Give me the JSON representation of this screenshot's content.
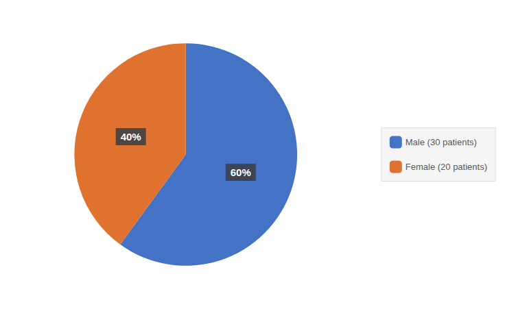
{
  "chart_data": {
    "type": "pie",
    "categories": [
      "Male (30 patients)",
      "Female (20 patients)"
    ],
    "values": [
      60,
      40
    ],
    "value_labels": [
      "60%",
      "40%"
    ],
    "colors": [
      "#4472C4",
      "#E07230"
    ],
    "data_labels": true,
    "legend": "right"
  }
}
